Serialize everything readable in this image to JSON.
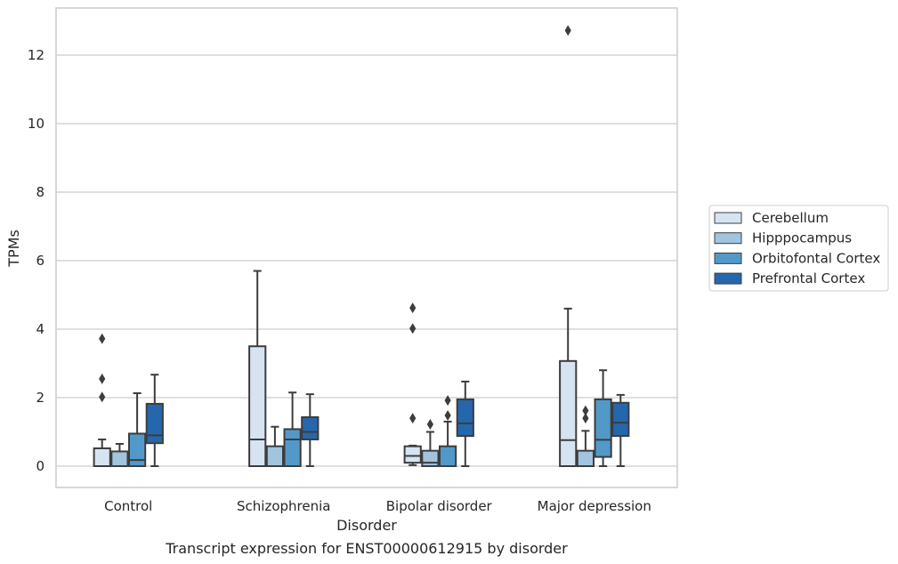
{
  "chart_data": {
    "type": "box",
    "title": "",
    "caption": "Transcript expression for ENST00000612915 by disorder",
    "xlabel": "Disorder",
    "ylabel": "TPMs",
    "ylim": [
      -0.6,
      13.4
    ],
    "yticks": [
      0,
      2,
      4,
      6,
      8,
      10,
      12
    ],
    "grid": "horizontal",
    "legend_position": "right",
    "categories": [
      "Control",
      "Schizophrenia",
      "Bipolar disorder",
      "Major depression"
    ],
    "series": [
      {
        "name": "Cerebellum",
        "color": "#d6e4f2",
        "boxes": [
          {
            "whisker_low": 0,
            "q1": 0,
            "median": 0,
            "q3": 0.52,
            "whisker_high": 0.78,
            "outliers": [
              2.02,
              2.55,
              3.72
            ]
          },
          {
            "whisker_low": 0,
            "q1": 0,
            "median": 0.78,
            "q3": 3.5,
            "whisker_high": 5.7,
            "outliers": []
          },
          {
            "whisker_low": 0.03,
            "q1": 0.1,
            "median": 0.3,
            "q3": 0.58,
            "whisker_high": 0.6,
            "outliers": [
              1.4,
              4.02,
              4.62
            ]
          },
          {
            "whisker_low": 0,
            "q1": 0,
            "median": 0.76,
            "q3": 3.07,
            "whisker_high": 4.6,
            "outliers": [
              12.72
            ]
          }
        ]
      },
      {
        "name": "Hipppocampus",
        "color": "#a1c4df",
        "boxes": [
          {
            "whisker_low": 0,
            "q1": 0,
            "median": 0,
            "q3": 0.43,
            "whisker_high": 0.65,
            "outliers": []
          },
          {
            "whisker_low": 0,
            "q1": 0,
            "median": 0,
            "q3": 0.58,
            "whisker_high": 1.15,
            "outliers": []
          },
          {
            "whisker_low": 0,
            "q1": 0,
            "median": 0.1,
            "q3": 0.45,
            "whisker_high": 1.0,
            "outliers": [
              1.22
            ]
          },
          {
            "whisker_low": 0,
            "q1": 0,
            "median": 0,
            "q3": 0.45,
            "whisker_high": 1.03,
            "outliers": [
              1.4,
              1.62
            ]
          }
        ]
      },
      {
        "name": "Orbitofontal Cortex",
        "color": "#5299c9",
        "boxes": [
          {
            "whisker_low": 0,
            "q1": 0,
            "median": 0.18,
            "q3": 0.95,
            "whisker_high": 2.13,
            "outliers": []
          },
          {
            "whisker_low": 0,
            "q1": 0,
            "median": 0.78,
            "q3": 1.08,
            "whisker_high": 2.15,
            "outliers": []
          },
          {
            "whisker_low": 0,
            "q1": 0,
            "median": 0,
            "q3": 0.58,
            "whisker_high": 1.3,
            "outliers": [
              1.48,
              1.92
            ]
          },
          {
            "whisker_low": 0,
            "q1": 0.27,
            "median": 0.77,
            "q3": 1.95,
            "whisker_high": 2.8,
            "outliers": []
          }
        ]
      },
      {
        "name": "Prefrontal Cortex",
        "color": "#2567ad",
        "boxes": [
          {
            "whisker_low": 0,
            "q1": 0.67,
            "median": 0.9,
            "q3": 1.82,
            "whisker_high": 2.67,
            "outliers": []
          },
          {
            "whisker_low": 0,
            "q1": 0.78,
            "median": 1.0,
            "q3": 1.43,
            "whisker_high": 2.1,
            "outliers": []
          },
          {
            "whisker_low": 0,
            "q1": 0.88,
            "median": 1.25,
            "q3": 1.95,
            "whisker_high": 2.47,
            "outliers": []
          },
          {
            "whisker_low": 0,
            "q1": 0.88,
            "median": 1.27,
            "q3": 1.85,
            "whisker_high": 2.08,
            "outliers": []
          }
        ]
      }
    ]
  }
}
